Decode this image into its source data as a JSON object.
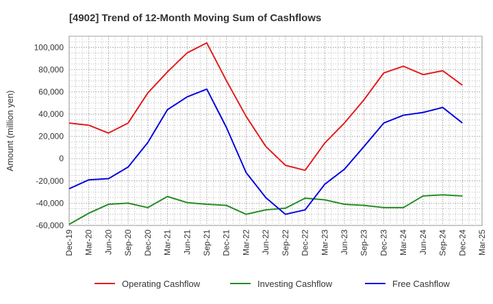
{
  "chart_data": {
    "type": "line",
    "title": "[4902]  Trend of 12-Month Moving Sum of Cashflows",
    "ylabel": "Amount (million yen)",
    "xlabel": "",
    "ylim": [
      -60000,
      110000
    ],
    "yticks": [
      -60000,
      -40000,
      -20000,
      0,
      20000,
      40000,
      60000,
      80000,
      100000
    ],
    "ytick_labels": [
      "-60,000",
      "-40,000",
      "-20,000",
      "0",
      "20,000",
      "40,000",
      "60,000",
      "80,000",
      "100,000"
    ],
    "categories": [
      "Dec-19",
      "Mar-20",
      "Jun-20",
      "Sep-20",
      "Dec-20",
      "Mar-21",
      "Jun-21",
      "Sep-21",
      "Dec-21",
      "Mar-22",
      "Jun-22",
      "Sep-22",
      "Dec-22",
      "Mar-23",
      "Jun-23",
      "Sep-23",
      "Dec-23",
      "Mar-24",
      "Jun-24",
      "Sep-24",
      "Dec-24",
      "Mar-25"
    ],
    "grid": true,
    "legend_position": "bottom",
    "series": [
      {
        "name": "Operating Cashflow",
        "color": "#e31a1c",
        "values": [
          32000,
          30000,
          23000,
          32000,
          59000,
          78000,
          95000,
          104000,
          70000,
          38000,
          11000,
          -6000,
          -10500,
          14000,
          32000,
          53000,
          77000,
          83000,
          75500,
          79000,
          66000,
          null
        ]
      },
      {
        "name": "Investing Cashflow",
        "color": "#238b23",
        "values": [
          -59000,
          -49000,
          -41000,
          -40000,
          -44000,
          -34000,
          -39500,
          -41000,
          -42000,
          -50000,
          -46000,
          -44500,
          -35500,
          -37000,
          -41000,
          -42000,
          -44000,
          -44000,
          -33500,
          -32500,
          -33500,
          null
        ]
      },
      {
        "name": "Free Cashflow",
        "color": "#0000e0",
        "values": [
          -27000,
          -19000,
          -18000,
          -7500,
          14500,
          44000,
          55500,
          62500,
          28000,
          -12500,
          -35000,
          -50000,
          -46000,
          -23000,
          -9500,
          11000,
          32000,
          39000,
          41500,
          46000,
          32000,
          null
        ]
      }
    ]
  }
}
